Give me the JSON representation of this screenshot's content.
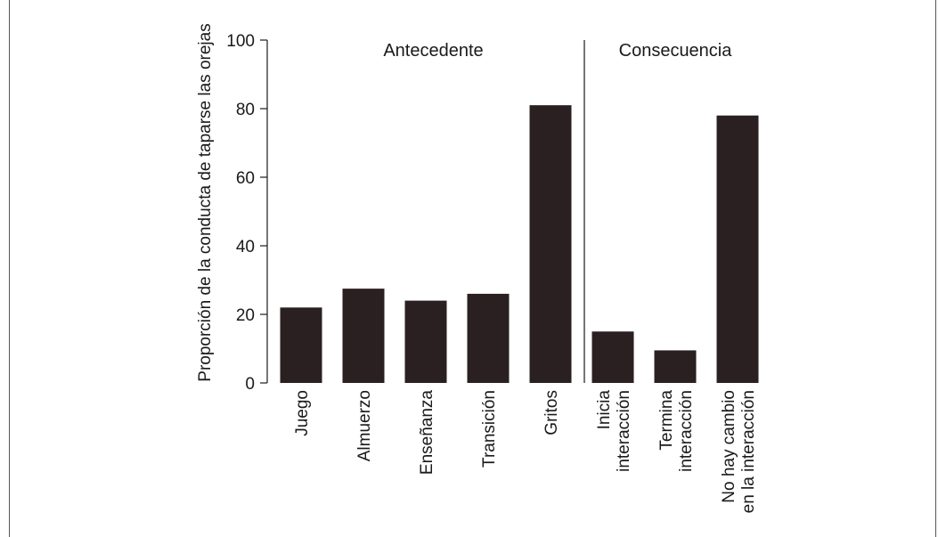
{
  "chart_data": {
    "type": "bar",
    "ylabel": "Proporción de la conducta de taparse las orejas",
    "xlabel": "",
    "ylim": [
      0,
      100
    ],
    "yticks": [
      "0",
      "20",
      "40",
      "60",
      "80",
      "100"
    ],
    "bar_color": "#2a2022",
    "sections": [
      {
        "title": "Antecedente",
        "categories": [
          {
            "label": [
              "Juego"
            ],
            "value": 22
          },
          {
            "label": [
              "Almuerzo"
            ],
            "value": 27.5
          },
          {
            "label": [
              "Enseñanza"
            ],
            "value": 24
          },
          {
            "label": [
              "Transición"
            ],
            "value": 26
          },
          {
            "label": [
              "Gritos"
            ],
            "value": 81
          }
        ]
      },
      {
        "title": "Consecuencia",
        "categories": [
          {
            "label": [
              "Inicia",
              "interacción"
            ],
            "value": 15
          },
          {
            "label": [
              "Termina",
              "interacción"
            ],
            "value": 9.5
          },
          {
            "label": [
              "No hay cambio",
              "en la interacción"
            ],
            "value": 78
          }
        ]
      }
    ]
  }
}
